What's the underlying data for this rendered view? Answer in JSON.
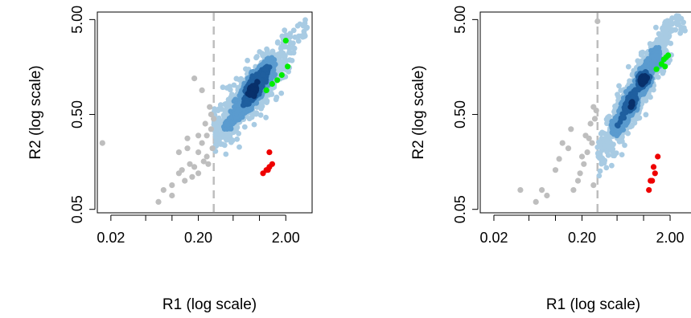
{
  "chart_data": [
    {
      "type": "scatter",
      "title": "",
      "xlabel": "R1 (log scale)",
      "ylabel": "R2 (log scale)",
      "x_scale": "log",
      "y_scale": "log",
      "xlim": [
        0.014,
        4.0
      ],
      "ylim": [
        0.046,
        6.0
      ],
      "x_ticks": [
        0.02,
        0.05,
        0.1,
        0.2,
        0.5,
        1,
        2
      ],
      "x_tick_labels": [
        "0.02",
        "",
        "",
        "0.20",
        "",
        "",
        "2.00"
      ],
      "y_ticks": [
        0.05,
        0.5,
        5
      ],
      "y_tick_labels": [
        "0.05",
        "0.50",
        "5.00"
      ],
      "reference_line_x": 0.3,
      "colors": {
        "grey": "#bebebe",
        "density_light": "#a8cbe3",
        "density_mid": "#5a9bcf",
        "density_dark": "#1f5f9f",
        "density_darkest": "#08306b",
        "green": "#00ee00",
        "red": "#ee0000",
        "refline": "#bebebe"
      },
      "density_cloud": {
        "x_range": [
          0.3,
          3.5
        ],
        "center": [
          0.85,
          0.9
        ],
        "slope": 1.0
      },
      "series": [
        {
          "color": "grey",
          "x": [
            0.016,
            0.07,
            0.08,
            0.1,
            0.12,
            0.14,
            0.16,
            0.18,
            0.2,
            0.22,
            0.25,
            0.28,
            0.12,
            0.15,
            0.2,
            0.25,
            0.3,
            0.18,
            0.22,
            0.27,
            0.24,
            0.2,
            0.15,
            0.1,
            0.13,
            0.28,
            0.26,
            0.23,
            0.29,
            0.17
          ],
          "y": [
            0.25,
            0.06,
            0.08,
            0.09,
            0.12,
            0.1,
            0.15,
            0.14,
            0.2,
            0.25,
            0.3,
            0.35,
            0.2,
            0.22,
            0.12,
            0.18,
            0.45,
            1.2,
            0.9,
            0.6,
            0.4,
            0.3,
            0.28,
            0.07,
            0.13,
            0.5,
            0.15,
            0.16,
            0.22,
            0.11
          ]
        },
        {
          "color": "green",
          "x": [
            1.2,
            1.4,
            1.6,
            1.8,
            2.1,
            2.0
          ],
          "y": [
            0.9,
            1.05,
            1.15,
            1.3,
            1.6,
            3.0
          ]
        },
        {
          "color": "red",
          "x": [
            1.1,
            1.2,
            1.3,
            1.4,
            1.3,
            1.25
          ],
          "y": [
            0.12,
            0.13,
            0.14,
            0.15,
            0.2,
            0.13
          ]
        }
      ]
    },
    {
      "type": "scatter",
      "title": "",
      "xlabel": "R1 (log scale)",
      "ylabel": "R2 (log scale)",
      "x_scale": "log",
      "y_scale": "log",
      "xlim": [
        0.014,
        4.0
      ],
      "ylim": [
        0.046,
        6.0
      ],
      "x_ticks": [
        0.02,
        0.05,
        0.1,
        0.2,
        0.5,
        1,
        2
      ],
      "x_tick_labels": [
        "0.02",
        "",
        "",
        "0.20",
        "",
        "",
        "2.00"
      ],
      "y_ticks": [
        0.05,
        0.5,
        5
      ],
      "y_tick_labels": [
        "0.05",
        "0.50",
        "5.00"
      ],
      "reference_line_x": 0.3,
      "colors": {
        "grey": "#bebebe",
        "density_light": "#a8cbe3",
        "density_mid": "#5a9bcf",
        "density_dark": "#1f5f9f",
        "density_darkest": "#08306b",
        "green": "#00ee00",
        "red": "#ee0000",
        "refline": "#bebebe"
      },
      "density_cloud": {
        "x_range": [
          0.3,
          3.0
        ],
        "center": [
          0.85,
          0.9
        ],
        "slope": 1.6
      },
      "series": [
        {
          "color": "grey",
          "x": [
            0.04,
            0.06,
            0.07,
            0.08,
            0.1,
            0.12,
            0.15,
            0.18,
            0.2,
            0.22,
            0.25,
            0.28,
            0.16,
            0.19,
            0.23,
            0.26,
            0.29,
            0.21,
            0.24,
            0.27,
            0.3,
            0.14,
            0.11,
            0.27
          ],
          "y": [
            0.08,
            0.06,
            0.08,
            0.07,
            0.13,
            0.25,
            0.35,
            0.1,
            0.18,
            0.3,
            0.4,
            0.45,
            0.08,
            0.12,
            0.2,
            0.25,
            0.55,
            0.15,
            0.28,
            0.6,
            4.8,
            0.22,
            0.17,
            0.09
          ]
        },
        {
          "color": "green",
          "x": [
            1.4,
            1.6,
            1.7,
            1.8,
            1.9,
            1.75
          ],
          "y": [
            1.5,
            1.7,
            1.9,
            2.0,
            2.1,
            1.6
          ]
        },
        {
          "color": "red",
          "x": [
            1.15,
            1.25,
            1.35,
            1.45,
            1.3,
            1.2
          ],
          "y": [
            0.08,
            0.1,
            0.12,
            0.18,
            0.14,
            0.1
          ]
        }
      ]
    }
  ]
}
